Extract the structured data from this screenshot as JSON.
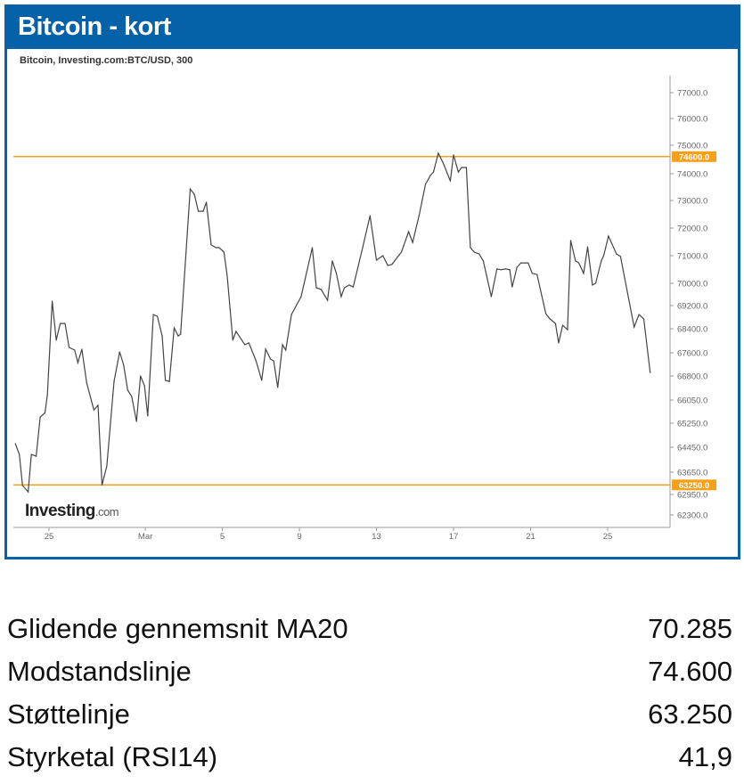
{
  "header": {
    "title": "Bitcoin - kort"
  },
  "chart_data": {
    "type": "line",
    "title": "Bitcoin, Investing.com:BTC/USD, 300",
    "source_logo": "Investing.com",
    "xlabel": "",
    "ylabel": "",
    "x_ticks": [
      {
        "date": "02-25",
        "label": "25"
      },
      {
        "date": "03-01",
        "label": "Mar"
      },
      {
        "date": "03-05",
        "label": "5"
      },
      {
        "date": "03-09",
        "label": "9"
      },
      {
        "date": "03-13",
        "label": "13"
      },
      {
        "date": "03-17",
        "label": "17"
      },
      {
        "date": "03-21",
        "label": "21"
      },
      {
        "date": "03-25",
        "label": "25"
      }
    ],
    "y_ticks": [
      77000,
      76000,
      75000,
      74000,
      73000,
      72000,
      71000,
      70000,
      69200,
      68400,
      67600,
      66800,
      66050,
      65250,
      64450,
      63650,
      62950,
      62300
    ],
    "y_tick_labels": [
      "77000.0",
      "76000.0",
      "75000.0",
      "74000.0",
      "73000.0",
      "72000.0",
      "71000.0",
      "70000.0",
      "69200.0",
      "68400.0",
      "67600.0",
      "66800.0",
      "66050.0",
      "65250.0",
      "64450.0",
      "63650.0",
      "62950.0",
      "62300.0"
    ],
    "hlines": [
      {
        "value": 74600,
        "label": "74600.0",
        "color": "#F7A11A"
      },
      {
        "value": 63250,
        "label": "63250.0",
        "color": "#F7A11A"
      }
    ],
    "line_color": "#444444",
    "grid": false,
    "series": [
      {
        "points": [
          [
            "02-23 06:00",
            64570
          ],
          [
            "02-23 11:00",
            64220
          ],
          [
            "02-23 15:00",
            63230
          ],
          [
            "02-23 22:00",
            63030
          ],
          [
            "02-24 02:00",
            64220
          ],
          [
            "02-24 08:00",
            64160
          ],
          [
            "02-24 13:00",
            65460
          ],
          [
            "02-24 19:00",
            65610
          ],
          [
            "02-24 22:00",
            66220
          ],
          [
            "02-25 04:00",
            69360
          ],
          [
            "02-25 09:00",
            68020
          ],
          [
            "02-25 14:00",
            68580
          ],
          [
            "02-25 20:00",
            68580
          ],
          [
            "02-26 01:00",
            67780
          ],
          [
            "02-26 08:00",
            67690
          ],
          [
            "02-26 12:00",
            67260
          ],
          [
            "02-26 17:00",
            67720
          ],
          [
            "02-26 23:00",
            66580
          ],
          [
            "02-27 08:00",
            65710
          ],
          [
            "02-27 13:00",
            65870
          ],
          [
            "02-27 18:00",
            63250
          ],
          [
            "02-28 00:00",
            63850
          ],
          [
            "02-28 09:00",
            66630
          ],
          [
            "02-28 16:00",
            67630
          ],
          [
            "02-28 21:00",
            67170
          ],
          [
            "02-29 02:00",
            66360
          ],
          [
            "02-29 07:00",
            66160
          ],
          [
            "02-29 13:00",
            65310
          ],
          [
            "02-29 18:00",
            66800
          ],
          [
            "02-29 23:00",
            66490
          ],
          [
            "03-01 03:00",
            65500
          ],
          [
            "03-01 10:00",
            68890
          ],
          [
            "03-01 15:00",
            68830
          ],
          [
            "03-01 21:00",
            68160
          ],
          [
            "03-02 01:00",
            66660
          ],
          [
            "03-02 06:00",
            66630
          ],
          [
            "03-02 12:00",
            68430
          ],
          [
            "03-02 17:00",
            68160
          ],
          [
            "03-02 20:00",
            68220
          ],
          [
            "03-03 08:00",
            73430
          ],
          [
            "03-03 13:00",
            73230
          ],
          [
            "03-03 18:00",
            72610
          ],
          [
            "03-04 00:00",
            72610
          ],
          [
            "03-04 04:00",
            72940
          ],
          [
            "03-04 10:00",
            71390
          ],
          [
            "03-04 16:00",
            71290
          ],
          [
            "03-04 20:00",
            71290
          ],
          [
            "03-05 02:00",
            71130
          ],
          [
            "03-05 06:00",
            70260
          ],
          [
            "03-05 13:00",
            68020
          ],
          [
            "03-05 17:00",
            68310
          ],
          [
            "03-05 23:00",
            68070
          ],
          [
            "03-06 04:00",
            67870
          ],
          [
            "03-06 09:00",
            67930
          ],
          [
            "03-06 18:00",
            67320
          ],
          [
            "03-07 01:00",
            66660
          ],
          [
            "03-07 06:00",
            67720
          ],
          [
            "03-07 12:00",
            67380
          ],
          [
            "03-07 16:00",
            67320
          ],
          [
            "03-07 21:00",
            66440
          ],
          [
            "03-08 03:00",
            67870
          ],
          [
            "03-08 07:00",
            67690
          ],
          [
            "03-08 14:00",
            68890
          ],
          [
            "03-08 20:00",
            69200
          ],
          [
            "03-09 02:00",
            69520
          ],
          [
            "03-09 16:00",
            71290
          ],
          [
            "03-09 21:00",
            69840
          ],
          [
            "03-10 03:00",
            69780
          ],
          [
            "03-10 11:00",
            69390
          ],
          [
            "03-10 17:00",
            70810
          ],
          [
            "03-10 22:00",
            70360
          ],
          [
            "03-11 04:00",
            69520
          ],
          [
            "03-11 08:00",
            69840
          ],
          [
            "03-11 14:00",
            69940
          ],
          [
            "03-11 19:00",
            69870
          ],
          [
            "03-12 07:00",
            71320
          ],
          [
            "03-12 16:00",
            72450
          ],
          [
            "03-13 00:00",
            70840
          ],
          [
            "03-13 08:00",
            71000
          ],
          [
            "03-13 14:00",
            70650
          ],
          [
            "03-13 19:00",
            70680
          ],
          [
            "03-14 07:00",
            71130
          ],
          [
            "03-14 16:00",
            71870
          ],
          [
            "03-14 21:00",
            71480
          ],
          [
            "03-15 05:00",
            72450
          ],
          [
            "03-15 13:00",
            73600
          ],
          [
            "03-15 19:00",
            73930
          ],
          [
            "03-15 23:00",
            74060
          ],
          [
            "03-16 05:00",
            74720
          ],
          [
            "03-16 11:00",
            74380
          ],
          [
            "03-16 20:00",
            73730
          ],
          [
            "03-17 00:00",
            74660
          ],
          [
            "03-17 06:00",
            74060
          ],
          [
            "03-17 10:00",
            74220
          ],
          [
            "03-17 16:00",
            74220
          ],
          [
            "03-17 21:00",
            71290
          ],
          [
            "03-18 02:00",
            71130
          ],
          [
            "03-18 08:00",
            71060
          ],
          [
            "03-18 13:00",
            70810
          ],
          [
            "03-18 23:00",
            69520
          ],
          [
            "03-19 06:00",
            70520
          ],
          [
            "03-19 11:00",
            70490
          ],
          [
            "03-19 17:00",
            70520
          ],
          [
            "03-19 22:00",
            70490
          ],
          [
            "03-20 01:00",
            69870
          ],
          [
            "03-20 07:00",
            70580
          ],
          [
            "03-20 12:00",
            70740
          ],
          [
            "03-20 21:00",
            70740
          ],
          [
            "03-21 02:00",
            70360
          ],
          [
            "03-21 08:00",
            70320
          ],
          [
            "03-21 19:00",
            68920
          ],
          [
            "03-22 00:00",
            68740
          ],
          [
            "03-22 07:00",
            68580
          ],
          [
            "03-22 11:00",
            67930
          ],
          [
            "03-22 16:00",
            68520
          ],
          [
            "03-22 22:00",
            68370
          ],
          [
            "03-23 02:00",
            71550
          ],
          [
            "03-23 08:00",
            70810
          ],
          [
            "03-23 12:00",
            70740
          ],
          [
            "03-23 18:00",
            70360
          ],
          [
            "03-23 23:00",
            71320
          ],
          [
            "03-24 05:00",
            69940
          ],
          [
            "03-24 09:00",
            70000
          ],
          [
            "03-24 16:00",
            70810
          ],
          [
            "03-24 19:00",
            71000
          ],
          [
            "03-25 01:00",
            71710
          ],
          [
            "03-25 11:00",
            71060
          ],
          [
            "03-25 16:00",
            70970
          ],
          [
            "03-26 09:00",
            68460
          ],
          [
            "03-26 15:00",
            68890
          ],
          [
            "03-26 21:00",
            68740
          ],
          [
            "03-27 05:00",
            66920
          ]
        ]
      }
    ]
  },
  "stats": [
    {
      "label": "Glidende gennemsnit MA20",
      "value": "70.285"
    },
    {
      "label": "Modstandslinje",
      "value": "74.600"
    },
    {
      "label": "Støttelinje",
      "value": "63.250"
    },
    {
      "label": "Styrketal (RSI14)",
      "value": "41,9"
    }
  ]
}
